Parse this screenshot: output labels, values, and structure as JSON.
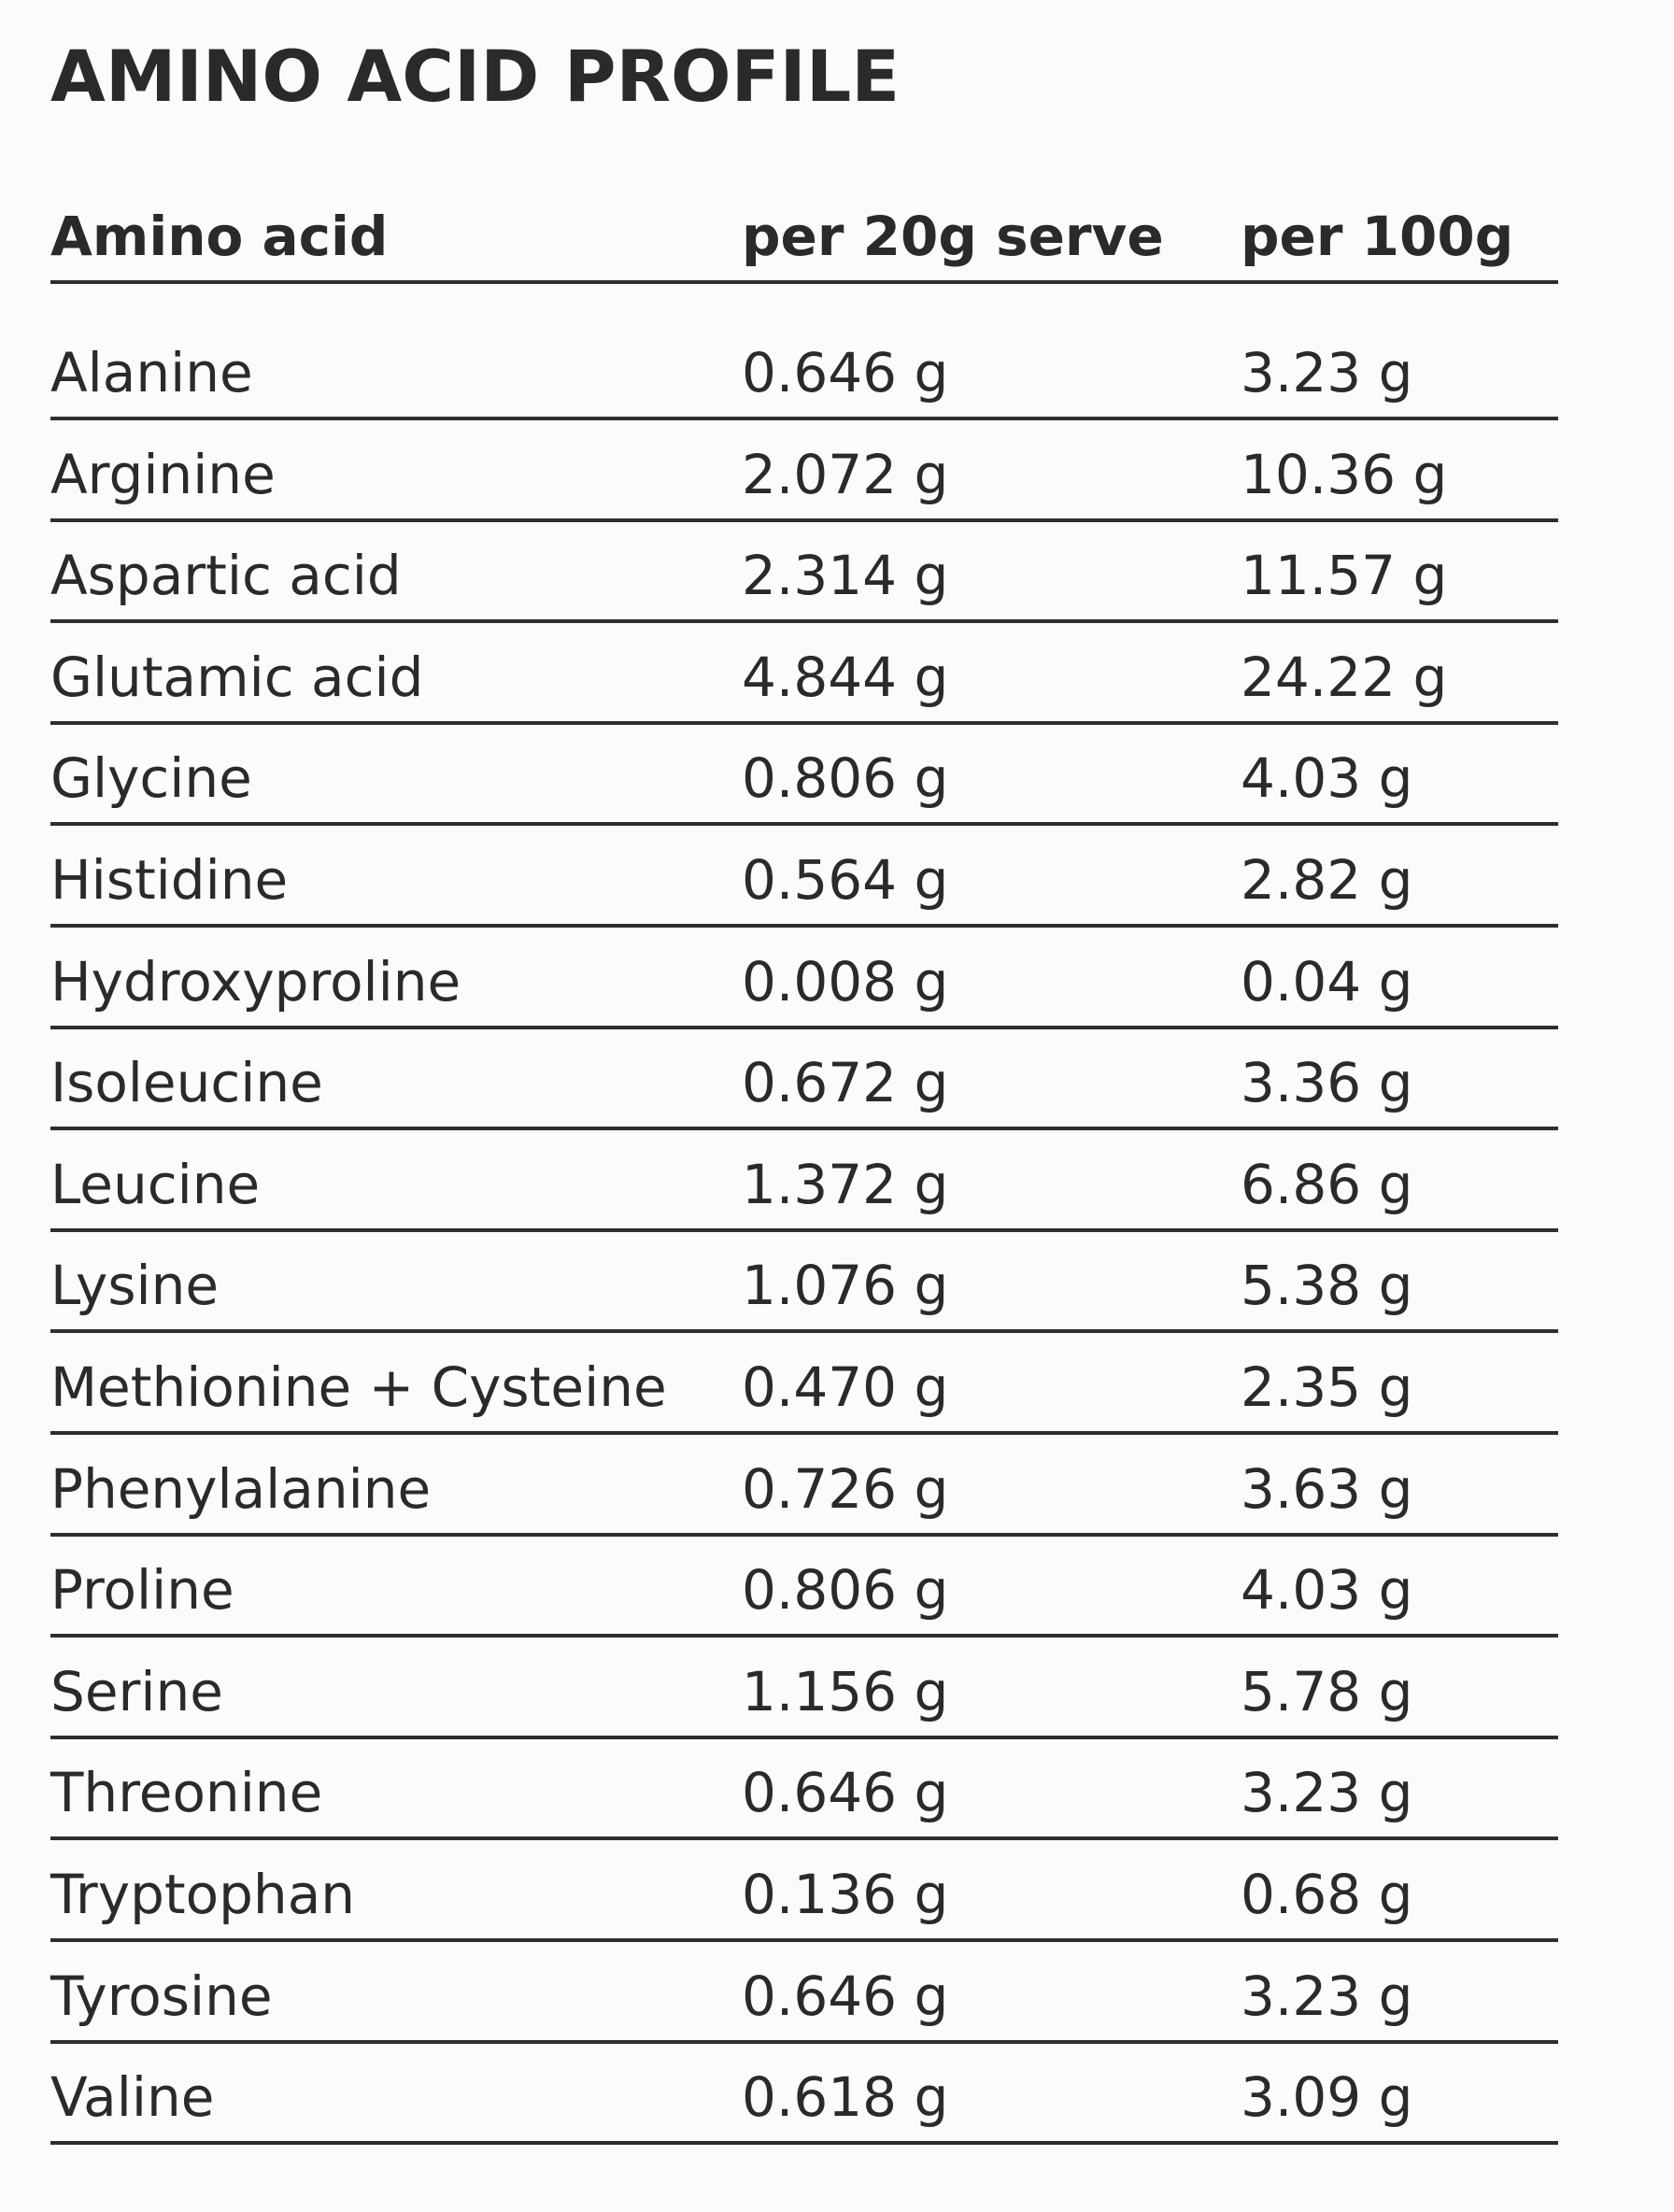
{
  "header": {
    "title": "AMINO ACID PROFILE"
  },
  "table": {
    "columns": [
      "Amino acid",
      "per 20g serve",
      "per 100g"
    ],
    "rows": [
      [
        "Alanine",
        "0.646 g",
        "3.23 g"
      ],
      [
        "Arginine",
        "2.072 g",
        "10.36 g"
      ],
      [
        "Aspartic acid",
        "2.314 g",
        "11.57 g"
      ],
      [
        "Glutamic acid",
        "4.844 g",
        "24.22 g"
      ],
      [
        "Glycine",
        "0.806 g",
        "4.03 g"
      ],
      [
        "Histidine",
        "0.564 g",
        "2.82 g"
      ],
      [
        "Hydroxyproline",
        "0.008 g",
        "0.04 g"
      ],
      [
        "Isoleucine",
        "0.672 g",
        "3.36 g"
      ],
      [
        "Leucine",
        "1.372 g",
        "6.86 g"
      ],
      [
        "Lysine",
        "1.076 g",
        "5.38 g"
      ],
      [
        "Methionine + Cysteine",
        "0.470 g",
        "2.35 g"
      ],
      [
        "Phenylalanine",
        "0.726 g",
        "3.63 g"
      ],
      [
        "Proline",
        "0.806 g",
        "4.03 g"
      ],
      [
        "Serine",
        "1.156 g",
        "5.78 g"
      ],
      [
        "Threonine",
        "0.646 g",
        "3.23 g"
      ],
      [
        "Tryptophan",
        "0.136 g",
        "0.68 g"
      ],
      [
        "Tyrosine",
        "0.646 g",
        "3.23 g"
      ],
      [
        "Valine",
        "0.618 g",
        "3.09 g"
      ]
    ]
  }
}
